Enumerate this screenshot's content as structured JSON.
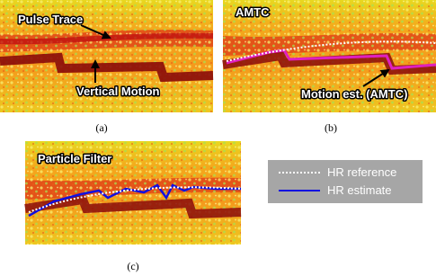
{
  "panels": [
    {
      "title": "Pulse Trace",
      "annotation": "Vertical Motion",
      "caption": "(a)"
    },
    {
      "title": "AMTC",
      "annotation": "Motion est. (AMTC)",
      "caption": "(b)"
    },
    {
      "title": "Particle Filter",
      "caption": "(c)"
    }
  ],
  "legend": {
    "entries": [
      {
        "label": "HR reference",
        "color": "#ffffff"
      },
      {
        "label": "HR estimate",
        "color": "#1010e0"
      }
    ]
  }
}
